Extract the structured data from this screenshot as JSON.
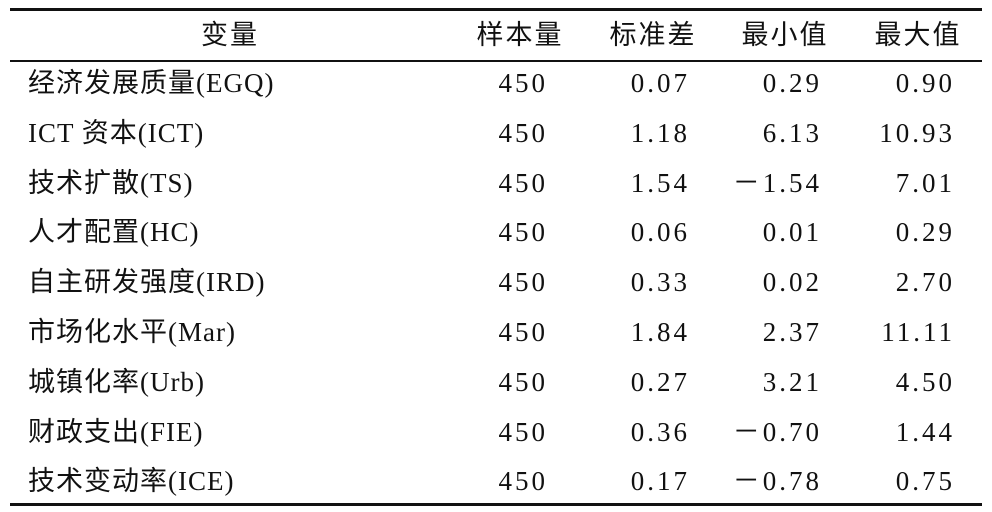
{
  "table": {
    "header": [
      "变量",
      "样本量",
      "标准差",
      "最小值",
      "最大值"
    ],
    "rows": [
      [
        "经济发展质量(EGQ)",
        "450",
        "0.07",
        "0.29",
        "0.90"
      ],
      [
        "ICT 资本(ICT)",
        "450",
        "1.18",
        "6.13",
        "10.93"
      ],
      [
        "技术扩散(TS)",
        "450",
        "1.54",
        "－1.54",
        "7.01"
      ],
      [
        "人才配置(HC)",
        "450",
        "0.06",
        "0.01",
        "0.29"
      ],
      [
        "自主研发强度(IRD)",
        "450",
        "0.33",
        "0.02",
        "2.70"
      ],
      [
        "市场化水平(Mar)",
        "450",
        "1.84",
        "2.37",
        "11.11"
      ],
      [
        "城镇化率(Urb)",
        "450",
        "0.27",
        "3.21",
        "4.50"
      ],
      [
        "财政支出(FIE)",
        "450",
        "0.36",
        "－0.70",
        "1.44"
      ],
      [
        "技术变动率(ICE)",
        "450",
        "0.17",
        "－0.78",
        "0.75"
      ]
    ]
  }
}
